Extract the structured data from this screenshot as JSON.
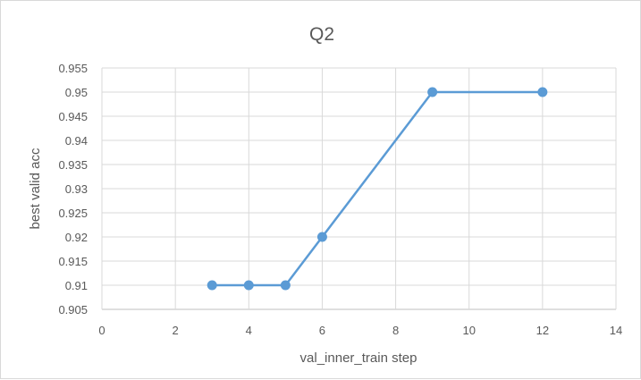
{
  "chart_data": {
    "type": "scatter",
    "title": "Q2",
    "xlabel": "val_inner_train step",
    "ylabel": "best valid acc",
    "xlim": [
      0,
      14
    ],
    "ylim": [
      0.905,
      0.955
    ],
    "x_ticks": [
      "0",
      "2",
      "4",
      "6",
      "8",
      "10",
      "12",
      "14"
    ],
    "y_ticks": [
      "0.905",
      "0.91",
      "0.915",
      "0.92",
      "0.925",
      "0.93",
      "0.935",
      "0.94",
      "0.945",
      "0.95",
      "0.955"
    ],
    "grid": true,
    "legend": "none",
    "series": [
      {
        "x": [
          3,
          4,
          5,
          6,
          9,
          12
        ],
        "y": [
          0.91,
          0.91,
          0.91,
          0.92,
          0.95,
          0.95
        ],
        "color": "#5b9bd5",
        "markers": true,
        "lines": true
      }
    ]
  }
}
